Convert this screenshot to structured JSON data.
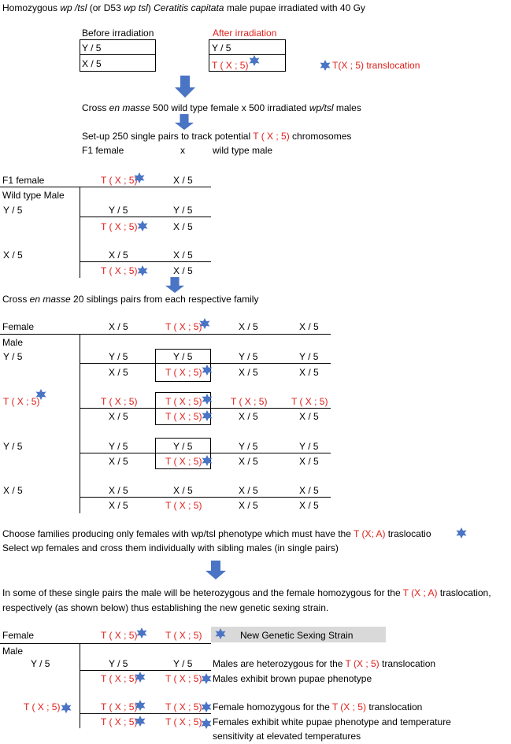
{
  "colors": {
    "red": "#e0201b",
    "star": "#4a74c4",
    "arrow": "#4a74c4",
    "gray": "#d9d9d9"
  },
  "icons": {
    "star": "six-point-star-icon",
    "arrow": "down-arrow-icon"
  },
  "header": {
    "part1": "Homozygous ",
    "part2": "wp /tsl",
    "part3": " (or D53 ",
    "part4": "wp tsl",
    "part5": ") ",
    "part6": "Ceratitis capitata",
    "part7": " male pupae irradiated with 40 Gy"
  },
  "irradiation": {
    "before_label": "Before irradiation",
    "after_label": "After irradiation",
    "before_rows": [
      "Y / 5",
      "X / 5"
    ],
    "after_rows": [
      "Y / 5",
      "T ( X ; 5)"
    ],
    "legend_label": "T(X ; 5) translocation"
  },
  "cross1": {
    "a": "Cross ",
    "b": "en masse",
    "c": "  500 wild type female  x 500 irradiated ",
    "d": "wp/tsl",
    "e": " males"
  },
  "setup": {
    "line1_a": "Set-up 250 single pairs to track potential ",
    "line1_b": "T ( X ; 5)",
    "line1_c": " chromosomes",
    "line2_a": "F1 female",
    "line2_b": "x",
    "line2_c": "wild type male"
  },
  "table1": {
    "female_label": "F1 female",
    "female_cols": [
      "T ( X ; 5)",
      "X / 5"
    ],
    "male_header": "Wild type Male",
    "rows": [
      {
        "label": "Y / 5",
        "top": [
          "Y / 5",
          "Y / 5"
        ],
        "bottom": [
          "T ( X ; 5)",
          "X / 5"
        ]
      },
      {
        "label": "X / 5",
        "top": [
          "X / 5",
          "X / 5"
        ],
        "bottom": [
          "T ( X ; 5)",
          "X / 5"
        ]
      }
    ]
  },
  "cross2": {
    "a": "Cross ",
    "b": "en masse",
    "c": "  20 siblings pairs from each respective family"
  },
  "table2": {
    "female_label": "Female",
    "female_cols": [
      "X / 5",
      "T ( X ; 5)",
      "X / 5",
      "X / 5"
    ],
    "male_header": "Male",
    "rows": [
      {
        "label": "Y / 5",
        "top": [
          "Y / 5",
          "Y / 5",
          "Y / 5",
          "Y / 5"
        ],
        "bottom": [
          "X / 5",
          "T ( X ; 5)",
          "X / 5",
          "X / 5"
        ]
      },
      {
        "label": "T ( X ; 5)",
        "top": [
          "T ( X ; 5)",
          "T ( X ; 5)",
          "T ( X ; 5)",
          "T ( X ; 5)"
        ],
        "bottom": [
          "X / 5",
          "T ( X ; 5)",
          "X / 5",
          "X / 5"
        ]
      },
      {
        "label": "Y / 5",
        "top": [
          "Y / 5",
          "Y / 5",
          "Y / 5",
          "Y / 5"
        ],
        "bottom": [
          "X / 5",
          "T ( X ; 5)",
          "X / 5",
          "X / 5"
        ]
      },
      {
        "label": "X / 5",
        "top": [
          "X / 5",
          "X / 5",
          "X / 5",
          "X / 5"
        ],
        "bottom": [
          "X / 5",
          "T ( X ; 5)",
          "X / 5",
          "X / 5"
        ]
      }
    ]
  },
  "choose": {
    "line1_a": "Choose families producing only  females with wp/tsl  phenotype which must have the ",
    "line1_b": "T (X; A)",
    "line1_c": " traslocatio",
    "line2": "Select  wp females and cross them individually with sibling males (in single pairs)"
  },
  "insome": {
    "line1_a": "In some of these single pairs the male will be heterozygous and the female homozygous for the ",
    "line1_b": "T (X ; A)",
    "line1_c": " traslocation,",
    "line2": "respectively (as shown below) thus establishing the new genetic sexing strain."
  },
  "table3": {
    "female_label": "Female",
    "female_cols": [
      "T ( X ; 5)",
      "T ( X ; 5)"
    ],
    "strain_label": "New Genetic Sexing Strain",
    "male_header": "Male",
    "rows": [
      {
        "label": "Y / 5",
        "top": [
          "Y / 5",
          "Y / 5"
        ],
        "bottom": [
          "T ( X ; 5)",
          "T ( X ; 5)"
        ]
      },
      {
        "label": "T ( X ; 5)",
        "top": [
          "T ( X ; 5)",
          "T ( X ; 5)"
        ],
        "bottom": [
          "T ( X ; 5)",
          "T ( X ; 5)"
        ]
      }
    ],
    "note1_a": "Males are heterozygous for the ",
    "note1_b": "T (X ; 5)",
    "note1_c": " translocation",
    "note2": "Males exhibit brown pupae phenotype",
    "note3_a": "Female homozygous for the ",
    "note3_b": "T (X ; 5)",
    "note3_c": " translocation",
    "note4_line1": "Females exhibit white pupae phenotype and temperature",
    "note4_line2": "sensitivity at elevated temperatures"
  }
}
